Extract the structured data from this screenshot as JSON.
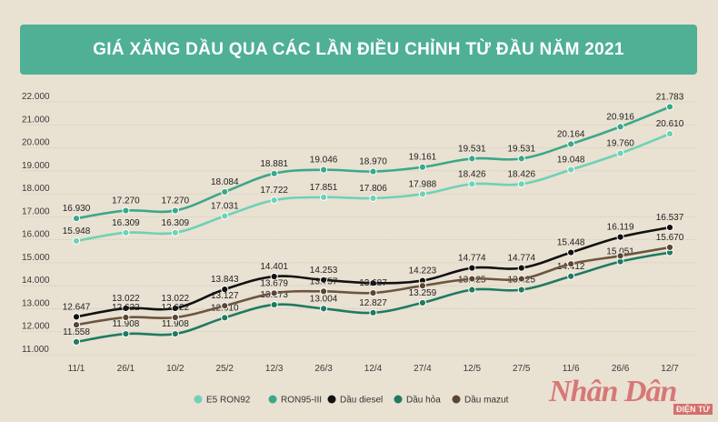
{
  "title": "GIÁ XĂNG DẦU QUA CÁC LẦN ĐIỀU CHỈNH TỪ ĐẦU NĂM 2021",
  "watermark": {
    "main": "Nhân Dân",
    "sub": "ĐIỆN TỬ"
  },
  "chart_data": {
    "type": "line",
    "title": "GIÁ XĂNG DẦU QUA CÁC LẦN ĐIỀU CHỈNH TỪ ĐẦU NĂM 2021",
    "categories": [
      "11/1",
      "26/1",
      "10/2",
      "25/2",
      "12/3",
      "26/3",
      "12/4",
      "27/4",
      "12/5",
      "27/5",
      "11/6",
      "26/6",
      "12/7"
    ],
    "y_ticks": [
      "11.000",
      "12.000",
      "13.000",
      "14.000",
      "15.000",
      "16.000",
      "17.000",
      "18.000",
      "19.000",
      "20.000",
      "21.000",
      "22.000"
    ],
    "ylim": [
      11000,
      22000
    ],
    "grid": "horizontal",
    "legend_position": "bottom",
    "series": [
      {
        "name": "E5 RON92",
        "color": "#6fd1b5",
        "marker": "#6fd1b5",
        "values": [
          15948,
          16309,
          16309,
          17031,
          17722,
          17851,
          17806,
          17988,
          18426,
          18426,
          19048,
          19760,
          20610
        ],
        "labels": [
          "15.948",
          "16.309",
          "16.309",
          "17.031",
          "17.722",
          "17.851",
          "17.806",
          "17.988",
          "18.426",
          "18.426",
          "19.048",
          "19.760",
          "20.610"
        ]
      },
      {
        "name": "RON95-III",
        "color": "#3aa88a",
        "marker": "#3aa88a",
        "values": [
          16930,
          17270,
          17270,
          18084,
          18881,
          19046,
          18970,
          19161,
          19531,
          19531,
          20164,
          20916,
          21783
        ],
        "labels": [
          "16.930",
          "17.270",
          "17.270",
          "18.084",
          "18.881",
          "19.046",
          "18.970",
          "19.161",
          "19.531",
          "19.531",
          "20.164",
          "20.916",
          "21.783"
        ]
      },
      {
        "name": "Dầu diesel",
        "color": "#111111",
        "marker": "#111111",
        "values": [
          12647,
          13022,
          13022,
          13843,
          14401,
          14253,
          14117,
          14223,
          14774,
          14774,
          15448,
          16119,
          16537
        ],
        "labels": [
          "12.647",
          "13.022",
          "13.022",
          "13.843",
          "14.401",
          "14.253",
          "",
          "14.223",
          "14.774",
          "14.774",
          "15.448",
          "16.119",
          "16.537"
        ]
      },
      {
        "name": "Dầu hỏa",
        "color": "#1f7a62",
        "marker": "#1f7a62",
        "values": [
          11558,
          11908,
          11908,
          12610,
          13173,
          13004,
          12827,
          13259,
          13825,
          13825,
          14412,
          15051,
          15450
        ],
        "labels": [
          "11.558",
          "11.908",
          "11.908",
          "12.610",
          "13.173",
          "13.004",
          "12.827",
          "13.259",
          "13.825",
          "13.825",
          "14.412",
          "15.051",
          ""
        ]
      },
      {
        "name": "Dầu mazut",
        "color": "#6b5640",
        "marker": "#5a4632",
        "values": [
          12300,
          12622,
          12622,
          13127,
          13679,
          13757,
          13687,
          14000,
          14300,
          14300,
          14950,
          15300,
          15670
        ],
        "labels": [
          "",
          "12.622",
          "12.622",
          "13.127",
          "13.679",
          "13.757",
          "13.687",
          "",
          "",
          "",
          "",
          "",
          "15.670"
        ]
      }
    ]
  }
}
